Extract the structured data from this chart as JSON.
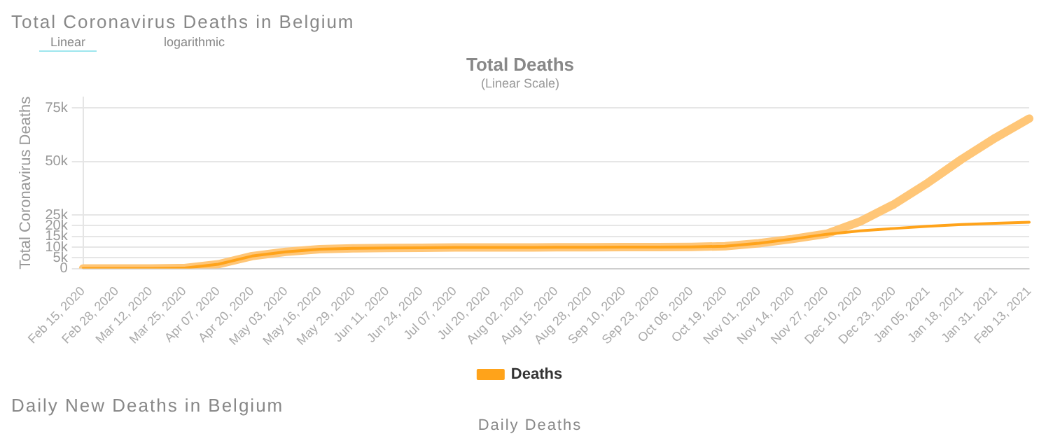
{
  "chart_data": {
    "type": "line",
    "title": "Total Deaths",
    "subtitle": "(Linear Scale)",
    "ylabel": "Total Coronavirus Deaths",
    "annotations": [
      "Total Coronavirus Deaths in Belgium",
      "Linear",
      "logarithmic",
      "Daily New Deaths in Belgium",
      "Daily Deaths"
    ],
    "categories": [
      "Feb 15, 2020",
      "Feb 28, 2020",
      "Mar 12, 2020",
      "Mar 25, 2020",
      "Apr 07, 2020",
      "Apr 20, 2020",
      "May 03, 2020",
      "May 16, 2020",
      "May 29, 2020",
      "Jun 11, 2020",
      "Jun 24, 2020",
      "Jul 07, 2020",
      "Jul 20, 2020",
      "Aug 02, 2020",
      "Aug 15, 2020",
      "Aug 28, 2020",
      "Sep 10, 2020",
      "Sep 23, 2020",
      "Oct 06, 2020",
      "Oct 19, 2020",
      "Nov 01, 2020",
      "Nov 14, 2020",
      "Nov 27, 2020",
      "Dec 10, 2020",
      "Dec 23, 2020",
      "Jan 05, 2021",
      "Jan 18, 2021",
      "Jan 31, 2021",
      "Feb 13, 2021"
    ],
    "series": [
      {
        "color": "#ffc677",
        "values": [
          0,
          0,
          0,
          200,
          2000,
          5800,
          7800,
          9000,
          9400,
          9600,
          9700,
          9800,
          9800,
          9800,
          9900,
          9900,
          10000,
          10000,
          10100,
          10400,
          11800,
          13800,
          16200,
          22000,
          30000,
          40000,
          51000,
          61000,
          70000
        ]
      },
      {
        "name": "Deaths",
        "color": "#ffa31a",
        "values": [
          0,
          0,
          0,
          200,
          2000,
          5800,
          7800,
          9000,
          9400,
          9600,
          9700,
          9800,
          9800,
          9800,
          9900,
          9900,
          10000,
          10000,
          10100,
          10400,
          11800,
          13800,
          16000,
          17600,
          18700,
          19700,
          20500,
          21100,
          21600
        ]
      }
    ],
    "ylim": [
      0,
      80000
    ],
    "yticks": [
      0,
      {
        "value": 5000,
        "label": "5k"
      },
      {
        "value": 10000,
        "label": "10k"
      },
      {
        "value": 15000,
        "label": "15k"
      },
      {
        "value": 20000,
        "label": "20k"
      },
      {
        "value": 25000,
        "label": "25k"
      },
      {
        "value": 50000,
        "label": "50k"
      },
      {
        "value": 75000,
        "label": "75k"
      }
    ],
    "grid": "y",
    "legend": "bottom",
    "marker": "none",
    "line_style": "solid"
  }
}
